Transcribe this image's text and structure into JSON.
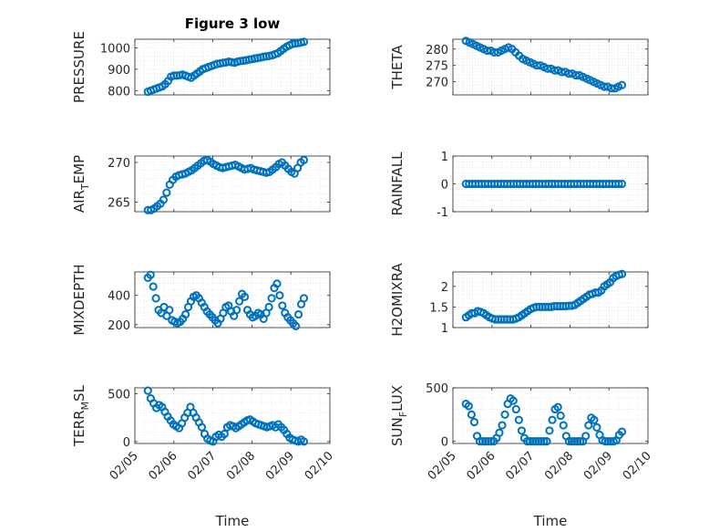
{
  "figure": {
    "marker_color": "#0072BD"
  },
  "chart_data": [
    {
      "type": "scatter",
      "title": "Figure 3 low",
      "ylabel": "PRESSURE",
      "xlabel": "",
      "ylim": [
        780,
        1040
      ],
      "yticks": [
        800,
        900,
        1000
      ],
      "xlim": [
        "02/05",
        "02/10"
      ],
      "xtick_labels": [],
      "x_start": "02/05 08:00",
      "x_end": "02/09 08:00",
      "values": [
        795,
        800,
        805,
        810,
        815,
        820,
        830,
        845,
        865,
        870,
        870,
        872,
        875,
        870,
        865,
        860,
        870,
        880,
        890,
        900,
        905,
        910,
        915,
        920,
        925,
        927,
        930,
        932,
        935,
        933,
        930,
        935,
        938,
        940,
        942,
        945,
        947,
        950,
        952,
        955,
        958,
        960,
        962,
        965,
        970,
        975,
        985,
        995,
        1005,
        1012,
        1018,
        1020,
        1022,
        1025,
        1028
      ]
    },
    {
      "type": "scatter",
      "title": "",
      "ylabel": "THETA",
      "xlabel": "",
      "ylim": [
        266,
        283
      ],
      "yticks": [
        270,
        275,
        280
      ],
      "xlim": [
        "02/05",
        "02/10"
      ],
      "xtick_labels": [],
      "x_start": "02/05 08:00",
      "x_end": "02/09 08:00",
      "values": [
        282.5,
        282,
        281.5,
        281,
        280.5,
        280,
        279.5,
        279.5,
        279,
        279,
        279.5,
        280,
        280.5,
        280,
        279,
        278,
        277,
        276.5,
        276,
        275.5,
        275,
        275,
        274.5,
        274,
        274,
        273.5,
        273.5,
        273,
        273,
        272.5,
        272.5,
        272,
        272,
        271.5,
        271,
        270.5,
        270,
        269.5,
        269,
        268.5,
        268.5,
        268,
        268,
        268.5,
        269
      ]
    },
    {
      "type": "scatter",
      "title": "",
      "ylabel": "AIR_TEMP",
      "ylabel_parts": [
        "AIR",
        "T",
        "EMP"
      ],
      "xlabel": "",
      "ylim": [
        263.8,
        270.8
      ],
      "yticks": [
        265,
        270
      ],
      "xlim": [
        "02/05",
        "02/10"
      ],
      "xtick_labels": [],
      "x_start": "02/05 08:00",
      "x_end": "02/09 08:00",
      "values": [
        264,
        264,
        264.2,
        264.5,
        264.8,
        265.3,
        266.2,
        267.2,
        267.8,
        268.2,
        268.4,
        268.5,
        268.6,
        268.8,
        269,
        269.3,
        269.6,
        269.9,
        270.2,
        270.3,
        270.1,
        269.8,
        269.6,
        269.4,
        269.3,
        269.4,
        269.5,
        269.6,
        269.7,
        269.5,
        269.3,
        269.1,
        269.2,
        269.3,
        269.1,
        269,
        268.9,
        268.8,
        268.7,
        268.8,
        269.1,
        269.4,
        269.8,
        270,
        269.6,
        269.2,
        268.8,
        268.6,
        269.3,
        270,
        270.3
      ]
    },
    {
      "type": "scatter",
      "title": "",
      "ylabel": "RAINFALL",
      "xlabel": "",
      "ylim": [
        -1,
        1
      ],
      "yticks": [
        -1,
        0,
        1
      ],
      "xlim": [
        "02/05",
        "02/10"
      ],
      "xtick_labels": [],
      "x_start": "02/05 08:00",
      "x_end": "02/09 08:00",
      "values": [
        0,
        0,
        0,
        0,
        0,
        0,
        0,
        0,
        0,
        0,
        0,
        0,
        0,
        0,
        0,
        0,
        0,
        0,
        0,
        0,
        0,
        0,
        0,
        0,
        0,
        0,
        0,
        0,
        0,
        0,
        0,
        0,
        0,
        0,
        0,
        0,
        0,
        0,
        0,
        0,
        0,
        0,
        0,
        0,
        0,
        0,
        0,
        0,
        0,
        0
      ]
    },
    {
      "type": "scatter",
      "title": "",
      "ylabel": "MIXDEPTH",
      "xlabel": "",
      "ylim": [
        180,
        560
      ],
      "yticks": [
        200,
        400
      ],
      "xlim": [
        "02/05",
        "02/10"
      ],
      "xtick_labels": [],
      "x_start": "02/05 08:00",
      "x_end": "02/09 08:00",
      "values": [
        520,
        540,
        460,
        380,
        300,
        280,
        320,
        260,
        300,
        230,
        220,
        210,
        220,
        240,
        270,
        320,
        360,
        390,
        400,
        380,
        350,
        320,
        290,
        270,
        250,
        230,
        210,
        240,
        280,
        320,
        330,
        290,
        260,
        300,
        360,
        410,
        390,
        300,
        270,
        250,
        260,
        280,
        270,
        240,
        280,
        320,
        380,
        450,
        480,
        400,
        330,
        280,
        250,
        230,
        210,
        190,
        270,
        340,
        380
      ]
    },
    {
      "type": "scatter",
      "title": "",
      "ylabel": "H2OMIXRA",
      "xlabel": "",
      "ylim": [
        1,
        2.35
      ],
      "yticks": [
        1,
        1.5,
        2
      ],
      "xlim": [
        "02/05",
        "02/10"
      ],
      "xtick_labels": [],
      "x_start": "02/05 08:00",
      "x_end": "02/09 08:00",
      "values": [
        1.25,
        1.3,
        1.35,
        1.35,
        1.4,
        1.38,
        1.35,
        1.3,
        1.25,
        1.22,
        1.2,
        1.2,
        1.2,
        1.2,
        1.2,
        1.2,
        1.2,
        1.22,
        1.25,
        1.3,
        1.35,
        1.4,
        1.45,
        1.48,
        1.5,
        1.5,
        1.5,
        1.5,
        1.5,
        1.5,
        1.52,
        1.52,
        1.52,
        1.52,
        1.52,
        1.53,
        1.53,
        1.55,
        1.6,
        1.65,
        1.7,
        1.75,
        1.8,
        1.82,
        1.85,
        1.85,
        1.9,
        2.0,
        2.05,
        2.1,
        2.2,
        2.25,
        2.28,
        2.3
      ]
    },
    {
      "type": "scatter",
      "title": "",
      "ylabel": "TERR_MSL",
      "ylabel_parts": [
        "TERR",
        "M",
        "SL"
      ],
      "xlabel": "Time",
      "ylim": [
        -20,
        560
      ],
      "yticks": [
        0,
        500
      ],
      "xlim": [
        "02/05",
        "02/10"
      ],
      "xtick_labels": [
        "02/05",
        "02/06",
        "02/07",
        "02/08",
        "02/09",
        "02/10"
      ],
      "x_start": "02/05 08:00",
      "x_end": "02/09 08:00",
      "values": [
        530,
        450,
        400,
        350,
        380,
        360,
        310,
        260,
        220,
        180,
        160,
        140,
        190,
        250,
        300,
        360,
        300,
        250,
        200,
        150,
        80,
        30,
        10,
        0,
        50,
        70,
        50,
        80,
        150,
        170,
        160,
        140,
        160,
        180,
        200,
        220,
        230,
        210,
        190,
        180,
        170,
        160,
        150,
        160,
        170,
        150,
        180,
        150,
        120,
        80,
        40,
        20,
        10,
        0,
        20,
        0
      ]
    },
    {
      "type": "scatter",
      "title": "",
      "ylabel": "SUN_FLUX",
      "ylabel_parts": [
        "SUN",
        "F",
        "LUX"
      ],
      "xlabel": "Time",
      "ylim": [
        -20,
        500
      ],
      "yticks": [
        0,
        500
      ],
      "xlim": [
        "02/05",
        "02/10"
      ],
      "xtick_labels": [
        "02/05",
        "02/06",
        "02/07",
        "02/08",
        "02/09",
        "02/10"
      ],
      "x_start": "02/05 08:00",
      "x_end": "02/09 08:00",
      "values": [
        350,
        330,
        250,
        180,
        50,
        0,
        0,
        0,
        0,
        0,
        0,
        30,
        80,
        150,
        250,
        350,
        400,
        380,
        300,
        200,
        100,
        30,
        0,
        0,
        0,
        0,
        0,
        0,
        0,
        0,
        100,
        200,
        300,
        320,
        240,
        150,
        50,
        0,
        0,
        0,
        0,
        0,
        0,
        50,
        150,
        220,
        200,
        130,
        60,
        10,
        0,
        0,
        0,
        0,
        10,
        60,
        90
      ]
    }
  ]
}
